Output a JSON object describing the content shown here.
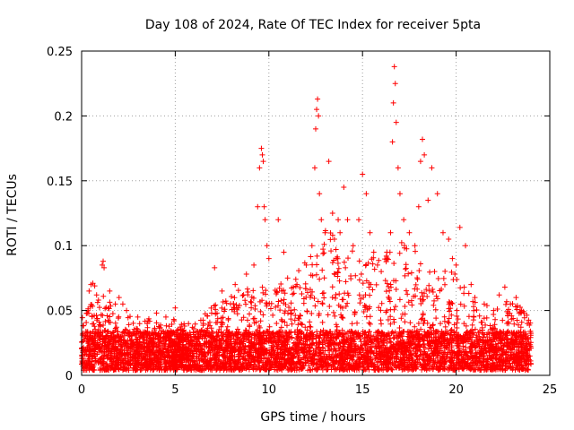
{
  "chart_data": {
    "type": "scatter",
    "title": "Day 108 of 2024, Rate Of TEC Index for receiver 5pta",
    "xlabel": "GPS time / hours",
    "ylabel": "ROTI / TECUs",
    "xlim": [
      0,
      25
    ],
    "ylim": [
      0,
      0.25
    ],
    "x_ticks": [
      "0",
      "5",
      "10",
      "15",
      "20",
      "25"
    ],
    "y_ticks": [
      "0",
      "0.05",
      "0.1",
      "0.15",
      "0.2",
      "0.25"
    ],
    "grid": true,
    "marker": "plus",
    "series_color": "#ff0000",
    "background_envelope": {
      "x": [
        0,
        1,
        2,
        3,
        4,
        5,
        6,
        7,
        8,
        9,
        10,
        11,
        12,
        13,
        14,
        15,
        16,
        17,
        18,
        19,
        20,
        21,
        22,
        23,
        24
      ],
      "y": [
        0.045,
        0.06,
        0.045,
        0.04,
        0.04,
        0.04,
        0.035,
        0.05,
        0.06,
        0.065,
        0.07,
        0.065,
        0.085,
        0.11,
        0.1,
        0.085,
        0.09,
        0.1,
        0.09,
        0.08,
        0.075,
        0.055,
        0.05,
        0.055,
        0.04
      ]
    },
    "points": {
      "x": [
        0.3,
        0.4,
        0.5,
        0.6,
        0.7,
        0.8,
        0.9,
        1.1,
        1.15,
        1.2,
        1.5,
        1.8,
        2.0,
        2.2,
        2.4,
        3.0,
        3.5,
        4.0,
        4.5,
        5.0,
        5.5,
        6.5,
        7.1,
        7.5,
        8.2,
        8.8,
        9.2,
        9.4,
        9.5,
        9.6,
        9.65,
        9.7,
        9.75,
        9.8,
        9.9,
        10.0,
        10.5,
        10.8,
        11.0,
        11.5,
        12.0,
        12.3,
        12.45,
        12.5,
        12.55,
        12.6,
        12.65,
        12.7,
        12.8,
        13.0,
        13.2,
        13.4,
        13.5,
        13.6,
        13.7,
        13.8,
        14.0,
        14.2,
        14.5,
        14.8,
        15.0,
        15.2,
        15.4,
        15.6,
        15.8,
        16.0,
        16.3,
        16.5,
        16.6,
        16.65,
        16.7,
        16.75,
        16.8,
        16.9,
        17.0,
        17.2,
        17.5,
        17.8,
        18.0,
        18.1,
        18.2,
        18.3,
        18.5,
        18.7,
        19.0,
        19.3,
        19.6,
        19.8,
        20.0,
        20.2,
        20.5,
        20.8,
        21.0,
        21.5,
        22.0,
        22.3,
        22.6,
        22.9,
        23.2,
        23.5,
        23.8
      ],
      "y": [
        0.048,
        0.065,
        0.07,
        0.071,
        0.069,
        0.062,
        0.058,
        0.085,
        0.088,
        0.083,
        0.065,
        0.055,
        0.06,
        0.055,
        0.05,
        0.045,
        0.04,
        0.048,
        0.045,
        0.052,
        0.038,
        0.04,
        0.083,
        0.065,
        0.07,
        0.078,
        0.085,
        0.13,
        0.16,
        0.175,
        0.17,
        0.165,
        0.13,
        0.12,
        0.1,
        0.09,
        0.12,
        0.095,
        0.075,
        0.07,
        0.085,
        0.1,
        0.16,
        0.19,
        0.205,
        0.213,
        0.2,
        0.14,
        0.12,
        0.11,
        0.165,
        0.125,
        0.105,
        0.09,
        0.12,
        0.11,
        0.145,
        0.12,
        0.1,
        0.12,
        0.155,
        0.14,
        0.11,
        0.095,
        0.085,
        0.08,
        0.095,
        0.11,
        0.18,
        0.21,
        0.238,
        0.225,
        0.195,
        0.16,
        0.14,
        0.12,
        0.11,
        0.1,
        0.13,
        0.165,
        0.182,
        0.17,
        0.135,
        0.16,
        0.14,
        0.11,
        0.105,
        0.09,
        0.085,
        0.114,
        0.1,
        0.07,
        0.06,
        0.055,
        0.05,
        0.062,
        0.068,
        0.055,
        0.06,
        0.05,
        0.04
      ]
    }
  }
}
